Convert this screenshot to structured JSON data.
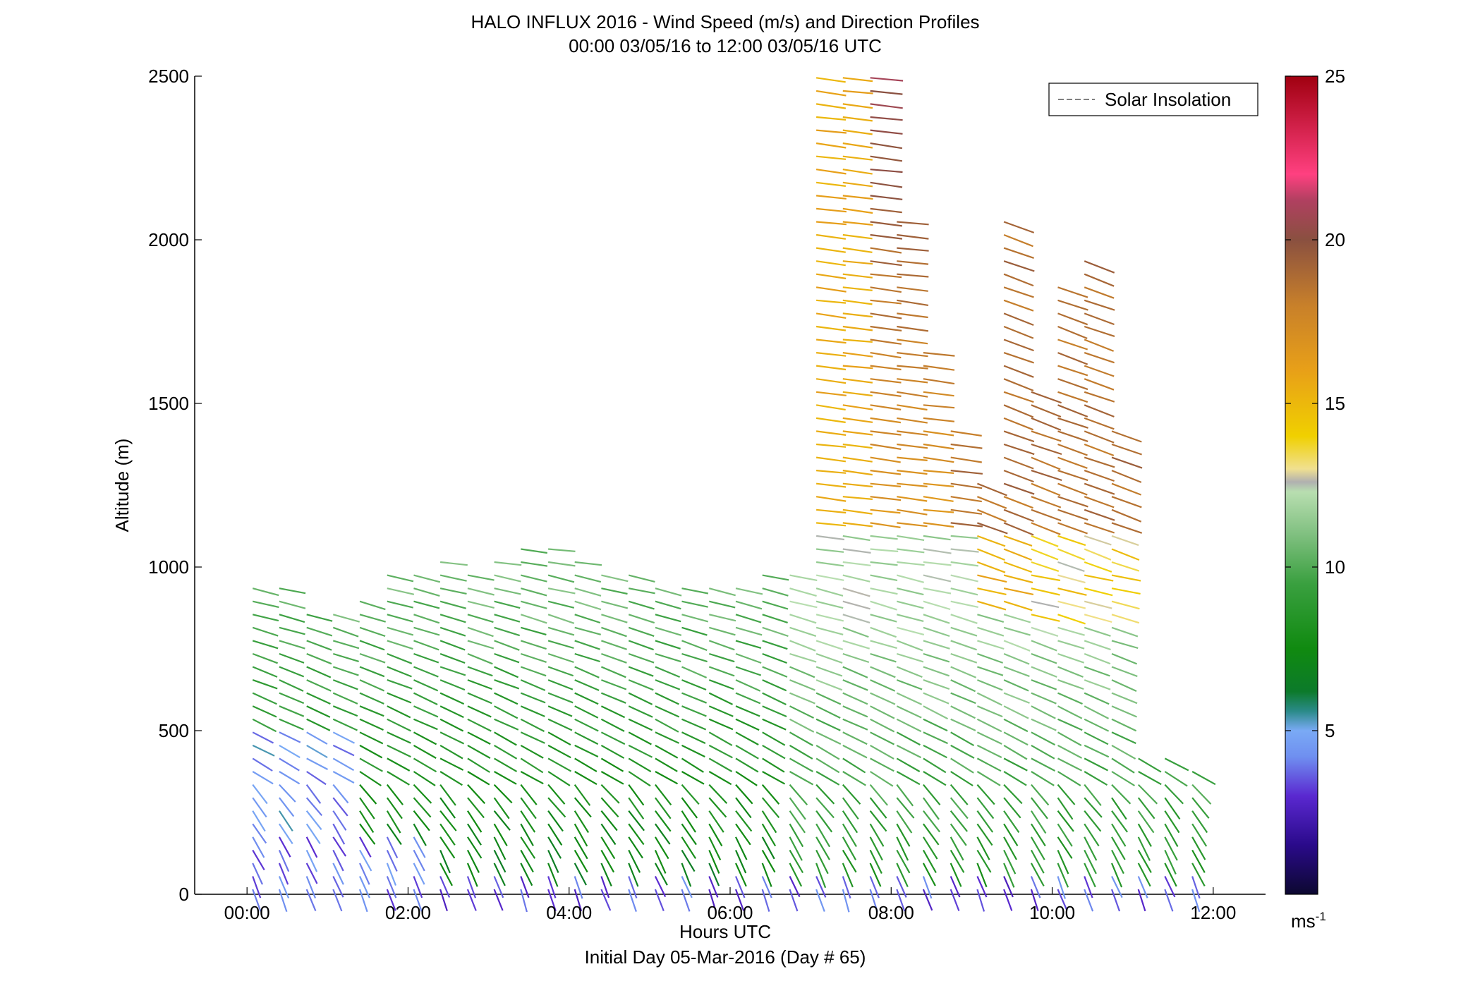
{
  "chart_data": {
    "type": "scatter",
    "title": "HALO INFLUX 2016 - Wind Speed (m/s) and Direction Profiles",
    "subtitle": "00:00 03/05/16 to 12:00 03/05/16  UTC",
    "xlabel": "Hours UTC",
    "xlabel2": "Initial Day 05-Mar-2016 (Day # 65)",
    "ylabel": "Altitude (m)",
    "xlim": [
      -0.65,
      12.65
    ],
    "ylim": [
      0,
      2500
    ],
    "x_ticks": [
      {
        "value": 0,
        "label": "00:00"
      },
      {
        "value": 2,
        "label": "02:00"
      },
      {
        "value": 4,
        "label": "04:00"
      },
      {
        "value": 6,
        "label": "06:00"
      },
      {
        "value": 8,
        "label": "08:00"
      },
      {
        "value": 10,
        "label": "10:00"
      },
      {
        "value": 12,
        "label": "12:00"
      }
    ],
    "y_ticks": [
      {
        "value": 0,
        "label": "0"
      },
      {
        "value": 500,
        "label": "500"
      },
      {
        "value": 1000,
        "label": "1000"
      },
      {
        "value": 1500,
        "label": "1500"
      },
      {
        "value": 2000,
        "label": "2000"
      },
      {
        "value": 2500,
        "label": "2500"
      }
    ],
    "legend": {
      "label": "Solar Insolation",
      "placement": "top-right",
      "line_color": "#808080"
    },
    "colorbar": {
      "label": "ms-1",
      "range": [
        0,
        25
      ],
      "ticks": [
        {
          "value": 5,
          "label": "5"
        },
        {
          "value": 10,
          "label": "10"
        },
        {
          "value": 15,
          "label": "15"
        },
        {
          "value": 20,
          "label": "20"
        },
        {
          "value": 25,
          "label": "25"
        }
      ],
      "stops": [
        {
          "v": 0,
          "c": "#0c0830"
        },
        {
          "v": 1.5,
          "c": "#2a0a8a"
        },
        {
          "v": 3,
          "c": "#5a28d0"
        },
        {
          "v": 4.2,
          "c": "#6f8ff0"
        },
        {
          "v": 5,
          "c": "#7aaaf5"
        },
        {
          "v": 5.6,
          "c": "#2a8a88"
        },
        {
          "v": 6.2,
          "c": "#0c7a2a"
        },
        {
          "v": 7.5,
          "c": "#108a10"
        },
        {
          "v": 9.5,
          "c": "#3aa040"
        },
        {
          "v": 11,
          "c": "#80c080"
        },
        {
          "v": 12.3,
          "c": "#b8deb0"
        },
        {
          "v": 12.6,
          "c": "#b0b0b0"
        },
        {
          "v": 13,
          "c": "#f0e090"
        },
        {
          "v": 14,
          "c": "#f0d000"
        },
        {
          "v": 16,
          "c": "#e8a018"
        },
        {
          "v": 18,
          "c": "#c8802a"
        },
        {
          "v": 20,
          "c": "#8a5040"
        },
        {
          "v": 21.2,
          "c": "#b04060"
        },
        {
          "v": 22,
          "c": "#ff4080"
        },
        {
          "v": 23.5,
          "c": "#d02048"
        },
        {
          "v": 25,
          "c": "#a00010"
        }
      ]
    },
    "wind_profiles": {
      "description_fields": [
        "hour",
        "altitude_m",
        "speed_ms",
        "direction_deg"
      ],
      "column_hours": [
        0.0,
        0.33,
        0.67,
        1.0,
        1.33,
        1.67,
        2.0,
        2.33,
        2.67,
        3.0,
        3.33,
        3.67,
        4.0,
        4.33,
        4.67,
        5.0,
        5.33,
        5.67,
        6.0,
        6.33,
        6.67,
        7.0,
        7.33,
        7.67,
        8.0,
        8.33,
        8.67,
        9.0,
        9.33,
        9.67,
        10.0,
        10.33,
        10.67,
        11.0,
        11.33,
        11.67
      ],
      "column_tops_m": [
        950,
        960,
        860,
        880,
        930,
        990,
        1010,
        1040,
        1010,
        1040,
        1060,
        1080,
        1040,
        1010,
        980,
        960,
        940,
        950,
        960,
        980,
        1000,
        2500,
        2500,
        2500,
        2080,
        1660,
        1450,
        1290,
        2080,
        1560,
        1860,
        1960,
        1420,
        450,
        420,
        410
      ],
      "low_speed_zone_top_m": 200,
      "low_speed_zone_top_m_late": 100
    }
  }
}
